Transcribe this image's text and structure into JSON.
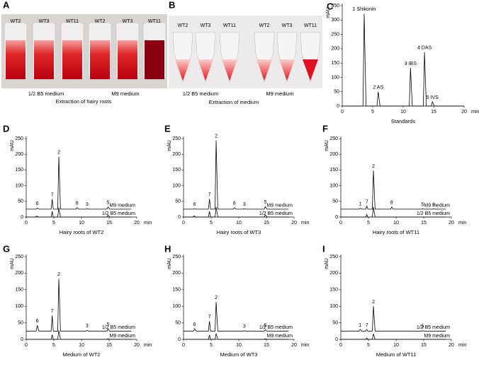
{
  "photos": [
    {
      "panel": "A",
      "tube_labels": [
        "WT2",
        "WT3",
        "WT11",
        "WT2",
        "WT3",
        "WT11"
      ],
      "group_labels": [
        "1/2 B5 medium",
        "M9 medium"
      ],
      "caption": "Extraction of hairy roots"
    },
    {
      "panel": "B",
      "tube_labels": [
        "WT2",
        "WT3",
        "WT11",
        "WT2",
        "WT3",
        "WT11"
      ],
      "group_labels": [
        "1/2 B5 medium",
        "M9 medium"
      ],
      "caption": "Extraction of medium"
    }
  ],
  "chart_data": [
    {
      "panel": "C",
      "type": "line",
      "xlabel": "min",
      "ylabel": "mAU",
      "caption": "Standards",
      "xlim": [
        0,
        20
      ],
      "xticks": [
        0,
        5,
        10,
        15,
        20
      ],
      "ylim": [
        0,
        350
      ],
      "yticks": [
        0,
        50,
        100,
        150,
        200,
        250,
        300,
        350
      ],
      "series": [
        {
          "color": "#000000",
          "x": [
            0,
            3.4,
            3.6,
            3.9,
            5.7,
            5.9,
            6.2,
            11.0,
            11.2,
            11.5,
            13.3,
            13.5,
            13.8,
            14.6,
            14.8,
            15.1,
            20
          ],
          "values": [
            0,
            0,
            322,
            0,
            0,
            50,
            0,
            0,
            133,
            0,
            0,
            188,
            0,
            0,
            15,
            0,
            0
          ]
        }
      ],
      "peak_labels": [
        {
          "text": "1 Shikonin",
          "x": 3.6,
          "y": 322
        },
        {
          "text": "2 AS",
          "x": 5.9,
          "y": 50
        },
        {
          "text": "3 IBS",
          "x": 11.2,
          "y": 133
        },
        {
          "text": "4 DAS",
          "x": 13.5,
          "y": 188
        },
        {
          "text": "5 IVS",
          "x": 14.8,
          "y": 15
        }
      ]
    },
    {
      "panel": "D",
      "type": "line",
      "xlabel": "min",
      "ylabel": "mAU",
      "caption": "Hairy roots of WT2",
      "xlim": [
        0,
        20
      ],
      "xticks": [
        0,
        5,
        10,
        15,
        20
      ],
      "ylim": [
        0,
        250
      ],
      "yticks": [
        0,
        50,
        100,
        150,
        200,
        250
      ],
      "series": [
        {
          "name": "M9 medium",
          "color": "#000000",
          "x": [
            0,
            1.8,
            2.0,
            2.3,
            4.5,
            4.7,
            4.9,
            5.7,
            5.9,
            6.2,
            9.0,
            9.2,
            9.5,
            10.8,
            11.0,
            11.3,
            14.6,
            14.8,
            15.1,
            19
          ],
          "values": [
            25,
            25,
            29,
            25,
            25,
            57,
            25,
            25,
            192,
            25,
            25,
            30,
            25,
            25,
            27,
            25,
            25,
            32,
            25,
            25
          ]
        },
        {
          "name": "1/2 B5 medium",
          "color": "#000000",
          "x": [
            0,
            1.7,
            1.9,
            2.2,
            4.5,
            4.7,
            4.9,
            5.7,
            5.9,
            6.2,
            14.6,
            14.8,
            15.1,
            19
          ],
          "values": [
            0,
            0,
            3,
            0,
            0,
            18,
            0,
            0,
            30,
            0,
            0,
            6,
            0,
            0
          ]
        }
      ],
      "peak_labels": [
        {
          "text": "6",
          "x": 2.0,
          "y": 29
        },
        {
          "text": "7",
          "x": 4.7,
          "y": 57
        },
        {
          "text": "2",
          "x": 5.9,
          "y": 192
        },
        {
          "text": "8",
          "x": 9.2,
          "y": 30
        },
        {
          "text": "3",
          "x": 11.0,
          "y": 27
        },
        {
          "text": "5",
          "x": 14.8,
          "y": 32
        }
      ]
    },
    {
      "panel": "E",
      "type": "line",
      "xlabel": "min",
      "ylabel": "mAU",
      "caption": "Hairy roots of WT3",
      "xlim": [
        0,
        20
      ],
      "xticks": [
        0,
        5,
        10,
        15,
        20
      ],
      "ylim": [
        0,
        250
      ],
      "yticks": [
        0,
        50,
        100,
        150,
        200,
        250
      ],
      "series": [
        {
          "name": "M9 medium",
          "color": "#000000",
          "x": [
            0,
            1.8,
            2.0,
            2.3,
            4.5,
            4.7,
            4.9,
            5.7,
            5.9,
            6.2,
            9.0,
            9.2,
            9.5,
            10.8,
            11.0,
            11.3,
            14.6,
            14.8,
            15.1,
            19
          ],
          "values": [
            25,
            25,
            27,
            25,
            25,
            58,
            25,
            25,
            244,
            25,
            25,
            30,
            25,
            25,
            27,
            25,
            25,
            33,
            25,
            25
          ]
        },
        {
          "name": "1/2 B5 medium",
          "color": "#000000",
          "x": [
            0,
            1.7,
            1.9,
            2.2,
            4.5,
            4.7,
            4.9,
            5.7,
            5.9,
            6.2,
            14.6,
            14.8,
            15.1,
            19
          ],
          "values": [
            0,
            0,
            4,
            0,
            0,
            18,
            0,
            0,
            32,
            0,
            0,
            7,
            0,
            0
          ]
        }
      ],
      "peak_labels": [
        {
          "text": "6",
          "x": 2.0,
          "y": 27
        },
        {
          "text": "7",
          "x": 4.7,
          "y": 58
        },
        {
          "text": "2",
          "x": 5.9,
          "y": 244
        },
        {
          "text": "8",
          "x": 9.2,
          "y": 30
        },
        {
          "text": "3",
          "x": 11.0,
          "y": 27
        },
        {
          "text": "5",
          "x": 14.8,
          "y": 33
        }
      ]
    },
    {
      "panel": "F",
      "type": "line",
      "xlabel": "min",
      "ylabel": "mAU",
      "caption": "Hairy roots of WT11",
      "xlim": [
        0,
        20
      ],
      "xticks": [
        0,
        5,
        10,
        15,
        20
      ],
      "ylim": [
        0,
        250
      ],
      "yticks": [
        0,
        50,
        100,
        150,
        200,
        250
      ],
      "series": [
        {
          "name": "M9 medium",
          "color": "#000000",
          "x": [
            0,
            3.3,
            3.5,
            3.8,
            4.5,
            4.7,
            4.9,
            5.7,
            5.9,
            6.2,
            9.0,
            9.2,
            9.5,
            14.6,
            14.8,
            15.1,
            16.6,
            16.8,
            17.1,
            19
          ],
          "values": [
            25,
            25,
            28,
            25,
            25,
            35,
            25,
            25,
            148,
            25,
            25,
            32,
            25,
            25,
            26,
            25,
            25,
            26,
            25,
            25
          ]
        },
        {
          "name": "1/2 B5 medium",
          "color": "#000000",
          "x": [
            0,
            4.5,
            4.7,
            4.9,
            5.7,
            5.9,
            6.2,
            19
          ],
          "values": [
            0,
            0,
            8,
            0,
            0,
            32,
            0,
            0
          ]
        }
      ],
      "peak_labels": [
        {
          "text": "1",
          "x": 3.5,
          "y": 28
        },
        {
          "text": "7",
          "x": 4.7,
          "y": 35
        },
        {
          "text": "2",
          "x": 5.9,
          "y": 148
        },
        {
          "text": "8",
          "x": 9.2,
          "y": 32
        },
        {
          "text": "5",
          "x": 14.8,
          "y": 26
        },
        {
          "text": "9",
          "x": 16.8,
          "y": 26
        }
      ]
    },
    {
      "panel": "G",
      "type": "line",
      "xlabel": "min",
      "ylabel": "mAU",
      "caption": "Medium of WT2",
      "xlim": [
        0,
        20
      ],
      "xticks": [
        0,
        5,
        10,
        15,
        20
      ],
      "ylim": [
        0,
        250
      ],
      "yticks": [
        0,
        50,
        100,
        150,
        200,
        250
      ],
      "series": [
        {
          "name": "1/2 B5 medium",
          "color": "#000000",
          "x": [
            0,
            1.8,
            2.0,
            2.3,
            4.5,
            4.7,
            4.9,
            5.7,
            5.9,
            6.2,
            10.8,
            11.0,
            11.3,
            14.6,
            14.8,
            15.1,
            19
          ],
          "values": [
            25,
            25,
            42,
            25,
            25,
            72,
            25,
            25,
            183,
            25,
            25,
            27,
            25,
            25,
            32,
            25,
            25
          ]
        },
        {
          "name": "M9 medium",
          "color": "#000000",
          "x": [
            0,
            4.5,
            4.7,
            4.9,
            5.7,
            5.9,
            6.2,
            14.6,
            14.8,
            15.1,
            19
          ],
          "values": [
            0,
            0,
            14,
            0,
            0,
            27,
            0,
            0,
            2,
            0,
            0
          ]
        }
      ],
      "peak_labels": [
        {
          "text": "6",
          "x": 2.0,
          "y": 42
        },
        {
          "text": "7",
          "x": 4.7,
          "y": 72
        },
        {
          "text": "2",
          "x": 5.9,
          "y": 183
        },
        {
          "text": "3",
          "x": 11.0,
          "y": 27
        },
        {
          "text": "5",
          "x": 14.8,
          "y": 32
        }
      ]
    },
    {
      "panel": "H",
      "type": "line",
      "xlabel": "min",
      "ylabel": "mAU",
      "caption": "Medium of WT3",
      "xlim": [
        0,
        20
      ],
      "xticks": [
        0,
        5,
        10,
        15,
        20
      ],
      "ylim": [
        0,
        250
      ],
      "yticks": [
        0,
        50,
        100,
        150,
        200,
        250
      ],
      "series": [
        {
          "name": "1/2 B5 medium",
          "color": "#000000",
          "x": [
            0,
            1.8,
            2.0,
            2.3,
            4.5,
            4.7,
            4.9,
            5.7,
            5.9,
            6.2,
            10.8,
            11.0,
            11.3,
            14.6,
            14.8,
            15.1,
            19
          ],
          "values": [
            25,
            25,
            32,
            25,
            25,
            55,
            25,
            25,
            113,
            25,
            25,
            26,
            25,
            25,
            29,
            25,
            25
          ]
        },
        {
          "name": "M9 medium",
          "color": "#000000",
          "x": [
            0,
            4.5,
            4.7,
            4.9,
            5.7,
            5.9,
            6.2,
            14.6,
            14.8,
            15.1,
            19
          ],
          "values": [
            0,
            0,
            13,
            0,
            0,
            18,
            0,
            0,
            2,
            0,
            0
          ]
        }
      ],
      "peak_labels": [
        {
          "text": "6",
          "x": 2.0,
          "y": 32
        },
        {
          "text": "7",
          "x": 4.7,
          "y": 55
        },
        {
          "text": "2",
          "x": 5.9,
          "y": 113
        },
        {
          "text": "3",
          "x": 11.0,
          "y": 26
        },
        {
          "text": "5",
          "x": 14.8,
          "y": 29
        }
      ]
    },
    {
      "panel": "I",
      "type": "line",
      "xlabel": "min",
      "ylabel": "mAU",
      "caption": "Medium of WT11",
      "xlim": [
        0,
        20
      ],
      "xticks": [
        0,
        5,
        10,
        15,
        20
      ],
      "ylim": [
        0,
        250
      ],
      "yticks": [
        0,
        50,
        100,
        150,
        200,
        250
      ],
      "series": [
        {
          "name": "1/2 B5 medium",
          "color": "#000000",
          "x": [
            0,
            3.3,
            3.5,
            3.8,
            4.5,
            4.7,
            4.9,
            5.7,
            5.9,
            6.2,
            14.6,
            14.8,
            15.1,
            19
          ],
          "values": [
            25,
            25,
            30,
            25,
            25,
            30,
            25,
            25,
            100,
            25,
            25,
            26,
            25,
            25
          ]
        },
        {
          "name": "M9 medium",
          "color": "#000000",
          "x": [
            0,
            4.5,
            4.7,
            4.9,
            5.7,
            5.9,
            6.2,
            19
          ],
          "values": [
            0,
            0,
            4,
            0,
            0,
            17,
            0,
            0
          ]
        }
      ],
      "peak_labels": [
        {
          "text": "1",
          "x": 3.5,
          "y": 30
        },
        {
          "text": "7",
          "x": 4.7,
          "y": 30
        },
        {
          "text": "2",
          "x": 5.9,
          "y": 100
        },
        {
          "text": "5",
          "x": 14.8,
          "y": 26
        }
      ]
    }
  ]
}
